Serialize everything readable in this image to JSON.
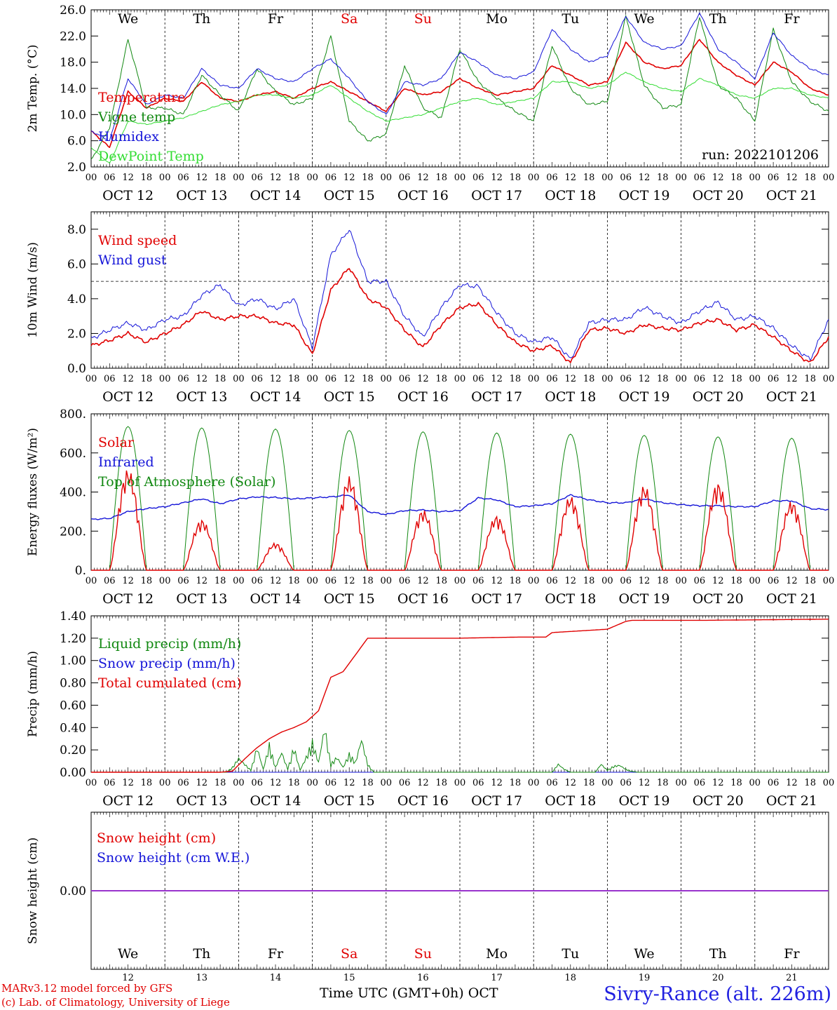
{
  "footer": {
    "credit_line1": "MARv3.12 model forced by GFS",
    "credit_line2": "(c) Lab. of Climatology, University of Liege",
    "xlabel_time": "Time UTC (GMT+0h)",
    "xlabel_month": "OCT",
    "station": "Sivry-Rance (alt. 226m)"
  },
  "colors": {
    "red": "#e00000",
    "green": "#118811",
    "blue": "#1414d8",
    "lightgreen": "#33dd33",
    "purple": "#9933cc",
    "weekend": "#e00000"
  },
  "chart_data": [
    {
      "type": "line",
      "ylabel": "2m Temp. (°C)",
      "ylim": [
        2,
        26
      ],
      "yticks": [
        "2.0",
        "6.0",
        "10.0",
        "14.0",
        "18.0",
        "22.0",
        "26.0"
      ],
      "days": [
        "We",
        "Th",
        "Fr",
        "Sa",
        "Su",
        "Mo",
        "Tu",
        "We",
        "Th",
        "Fr"
      ],
      "date_labels": [
        "OCT 12",
        "OCT 13",
        "OCT 14",
        "OCT 15",
        "OCT 16",
        "OCT 17",
        "OCT 18",
        "OCT 19",
        "OCT 20",
        "OCT 21"
      ],
      "hour_ticks": [
        "00",
        "06",
        "12",
        "18"
      ],
      "annotation": "run: 2022101206",
      "x_hours": [
        0,
        6,
        12,
        18,
        24,
        30,
        36,
        42,
        48,
        54,
        60,
        66,
        72,
        78,
        84,
        90,
        96,
        102,
        108,
        114,
        120,
        126,
        132,
        138,
        144,
        150,
        156,
        162,
        168,
        174,
        180,
        186,
        192,
        198,
        204,
        210,
        216,
        222,
        228,
        234,
        240
      ],
      "series": [
        {
          "name": "Temperature",
          "color": "red",
          "values": [
            7.5,
            5.0,
            13.5,
            11.0,
            12.5,
            12.0,
            15.0,
            12.5,
            12.0,
            13.0,
            13.5,
            12.5,
            14.0,
            15.0,
            13.5,
            12.0,
            10.5,
            14.0,
            13.0,
            13.5,
            15.5,
            14.0,
            13.0,
            13.5,
            14.0,
            17.5,
            16.0,
            14.5,
            15.0,
            21.0,
            18.0,
            17.0,
            17.5,
            21.5,
            18.0,
            16.0,
            14.5,
            18.0,
            16.5,
            14.0,
            13.0
          ]
        },
        {
          "name": "Vigne temp",
          "color": "green",
          "values": [
            3.0,
            8.0,
            21.5,
            11.0,
            11.0,
            10.0,
            16.0,
            13.0,
            10.5,
            17.0,
            13.5,
            11.5,
            12.5,
            22.0,
            9.0,
            6.0,
            7.0,
            17.5,
            11.0,
            9.5,
            20.0,
            15.0,
            12.5,
            10.5,
            9.0,
            20.5,
            14.0,
            11.5,
            12.0,
            25.0,
            14.5,
            11.0,
            11.5,
            25.0,
            14.5,
            12.5,
            9.0,
            23.0,
            15.0,
            12.0,
            10.5
          ]
        },
        {
          "name": "Humidex",
          "color": "blue",
          "values": [
            7.5,
            6.0,
            15.5,
            11.5,
            13.0,
            12.5,
            17.0,
            14.5,
            14.0,
            17.0,
            15.5,
            15.0,
            17.0,
            18.5,
            15.5,
            12.0,
            10.0,
            15.0,
            14.5,
            15.5,
            19.5,
            18.0,
            16.0,
            15.5,
            16.5,
            23.0,
            20.0,
            18.0,
            19.0,
            25.0,
            21.0,
            20.0,
            20.5,
            25.5,
            20.0,
            18.0,
            15.5,
            22.5,
            19.0,
            17.0,
            16.0
          ]
        },
        {
          "name": "DewPoint Temp",
          "color": "lightgreen",
          "values": [
            5.0,
            2.5,
            9.0,
            8.5,
            9.0,
            9.5,
            10.5,
            11.5,
            12.0,
            13.0,
            13.0,
            12.5,
            13.0,
            14.5,
            12.5,
            10.5,
            9.0,
            9.5,
            10.0,
            11.0,
            12.0,
            12.5,
            11.5,
            12.0,
            12.5,
            15.0,
            15.0,
            14.0,
            14.5,
            16.5,
            15.0,
            14.0,
            13.5,
            15.5,
            14.5,
            13.0,
            12.5,
            14.0,
            14.0,
            13.0,
            12.5
          ]
        }
      ]
    },
    {
      "type": "line",
      "ylabel": "10m Wind (m/s)",
      "ylim": [
        0,
        9
      ],
      "yticks": [
        "0.0",
        "2.0",
        "4.0",
        "6.0",
        "8.0"
      ],
      "reference_line": 5.0,
      "date_labels": [
        "OCT 12",
        "OCT 13",
        "OCT 14",
        "OCT 15",
        "OCT 16",
        "OCT 17",
        "OCT 18",
        "OCT 19",
        "OCT 20",
        "OCT 21"
      ],
      "hour_ticks": [
        "00",
        "06",
        "12",
        "18"
      ],
      "x_hours": [
        0,
        6,
        12,
        18,
        24,
        30,
        36,
        42,
        48,
        54,
        60,
        66,
        72,
        78,
        84,
        90,
        96,
        102,
        108,
        114,
        120,
        126,
        132,
        138,
        144,
        150,
        156,
        162,
        168,
        174,
        180,
        186,
        192,
        198,
        204,
        210,
        216,
        222,
        228,
        234,
        240
      ],
      "series": [
        {
          "name": "Wind speed",
          "color": "red",
          "values": [
            1.3,
            1.6,
            2.0,
            1.5,
            2.0,
            2.5,
            3.3,
            2.8,
            3.0,
            3.0,
            2.6,
            2.5,
            0.8,
            4.5,
            5.8,
            4.0,
            3.5,
            2.2,
            1.2,
            2.5,
            3.5,
            3.7,
            2.5,
            1.5,
            1.0,
            1.3,
            0.3,
            2.2,
            2.3,
            2.0,
            2.5,
            2.3,
            2.2,
            2.6,
            2.8,
            2.2,
            2.5,
            1.8,
            1.0,
            0.3,
            1.8
          ]
        },
        {
          "name": "Wind gust",
          "color": "blue",
          "values": [
            1.7,
            2.2,
            2.6,
            2.2,
            2.8,
            3.0,
            4.2,
            4.8,
            3.6,
            4.0,
            3.4,
            4.0,
            1.2,
            6.5,
            8.0,
            5.0,
            5.0,
            3.0,
            1.8,
            3.5,
            4.8,
            4.7,
            3.2,
            2.0,
            1.5,
            1.8,
            0.5,
            2.6,
            2.8,
            2.8,
            3.5,
            3.0,
            2.6,
            3.3,
            3.8,
            2.8,
            3.0,
            2.3,
            1.3,
            0.5,
            2.8
          ]
        }
      ]
    },
    {
      "type": "line",
      "ylabel": "Energy fluxes (W/m²)",
      "ylim": [
        0,
        800
      ],
      "yticks": [
        "0.",
        "200.",
        "400.",
        "600.",
        "800."
      ],
      "date_labels": [
        "OCT 12",
        "OCT 13",
        "OCT 14",
        "OCT 15",
        "OCT 16",
        "OCT 17",
        "OCT 18",
        "OCT 19",
        "OCT 20",
        "OCT 21"
      ],
      "hour_ticks": [
        "00",
        "06",
        "12",
        "18"
      ],
      "toa_peaks": [
        735,
        728,
        722,
        715,
        708,
        702,
        696,
        690,
        682,
        675
      ],
      "solar_peaks": [
        520,
        260,
        140,
        480,
        310,
        280,
        380,
        435,
        450,
        355
      ],
      "series": [
        {
          "name": "Solar",
          "color": "red"
        },
        {
          "name": "Infrared",
          "color": "blue",
          "x_hours": [
            0,
            6,
            12,
            18,
            24,
            30,
            36,
            42,
            48,
            54,
            60,
            66,
            72,
            78,
            84,
            90,
            96,
            102,
            108,
            114,
            120,
            126,
            132,
            138,
            144,
            150,
            156,
            162,
            168,
            174,
            180,
            186,
            192,
            198,
            204,
            210,
            216,
            222,
            228,
            234,
            240
          ],
          "values": [
            260,
            265,
            300,
            315,
            325,
            345,
            365,
            340,
            365,
            375,
            372,
            365,
            370,
            375,
            385,
            300,
            285,
            305,
            308,
            300,
            305,
            370,
            360,
            325,
            330,
            340,
            385,
            360,
            345,
            345,
            365,
            345,
            335,
            330,
            330,
            325,
            325,
            355,
            355,
            315,
            310
          ]
        },
        {
          "name": "Top of Atmosphere (Solar)",
          "color": "green"
        }
      ]
    },
    {
      "type": "line",
      "ylabel": "Precip (mm/h)",
      "ylim": [
        0,
        1.4
      ],
      "yticks": [
        "0.00",
        "0.20",
        "0.40",
        "0.60",
        "0.80",
        "1.00",
        "1.20",
        "1.40"
      ],
      "date_labels": [
        "OCT 12",
        "OCT 13",
        "OCT 14",
        "OCT 15",
        "OCT 16",
        "OCT 17",
        "OCT 18",
        "OCT 19",
        "OCT 20",
        "OCT 21"
      ],
      "hour_ticks": [
        "00",
        "06",
        "12",
        "18"
      ],
      "series": [
        {
          "name": "Liquid precip (mm/h)",
          "color": "green",
          "x_hours": [
            0,
            44,
            46,
            48,
            50,
            52,
            54,
            56,
            58,
            60,
            62,
            64,
            66,
            68,
            70,
            72,
            74,
            76,
            78,
            80,
            82,
            84,
            86,
            88,
            90,
            92,
            100,
            150,
            152,
            154,
            156,
            164,
            166,
            168,
            170,
            172,
            174,
            176,
            178,
            240
          ],
          "values": [
            0,
            0,
            0.05,
            0.14,
            0.08,
            0.02,
            0.25,
            0.03,
            0.27,
            0.05,
            0.2,
            0.03,
            0.25,
            0.02,
            0.15,
            0.3,
            0.1,
            0.45,
            0.08,
            0.15,
            0.05,
            0.18,
            0.1,
            0.33,
            0.08,
            0,
            0,
            0,
            0.08,
            0.03,
            0,
            0,
            0.08,
            0.02,
            0.06,
            0.07,
            0.03,
            0.01,
            0,
            0
          ]
        },
        {
          "name": "Snow precip (mm/h)",
          "color": "blue",
          "x_hours": [
            0,
            240
          ],
          "values": [
            0,
            0
          ]
        },
        {
          "name": "Total cumulated (cm)",
          "color": "red",
          "x_hours": [
            0,
            42,
            46,
            50,
            54,
            58,
            62,
            66,
            70,
            74,
            78,
            82,
            86,
            90,
            94,
            100,
            110,
            120,
            140,
            148,
            150,
            156,
            168,
            174,
            176,
            200,
            240
          ],
          "values": [
            0,
            0,
            0.01,
            0.12,
            0.22,
            0.3,
            0.36,
            0.4,
            0.45,
            0.55,
            0.85,
            0.9,
            1.05,
            1.2,
            1.2,
            1.2,
            1.2,
            1.2,
            1.21,
            1.21,
            1.25,
            1.26,
            1.28,
            1.35,
            1.36,
            1.36,
            1.37
          ]
        }
      ]
    },
    {
      "type": "line",
      "ylabel": "Snow height (cm)",
      "yticks": [
        "0.00"
      ],
      "days": [
        "We",
        "Th",
        "Fr",
        "Sa",
        "Su",
        "Mo",
        "Tu",
        "We",
        "Th",
        "Fr"
      ],
      "day_numbers": [
        "12",
        "13",
        "14",
        "15",
        "16",
        "17",
        "18",
        "19",
        "20",
        "21"
      ],
      "series": [
        {
          "name": "Snow height (cm)",
          "color": "red",
          "values": [
            0,
            0
          ]
        },
        {
          "name": "Snow height (cm W.E.)",
          "color": "blue",
          "values": [
            0,
            0
          ]
        }
      ]
    }
  ]
}
